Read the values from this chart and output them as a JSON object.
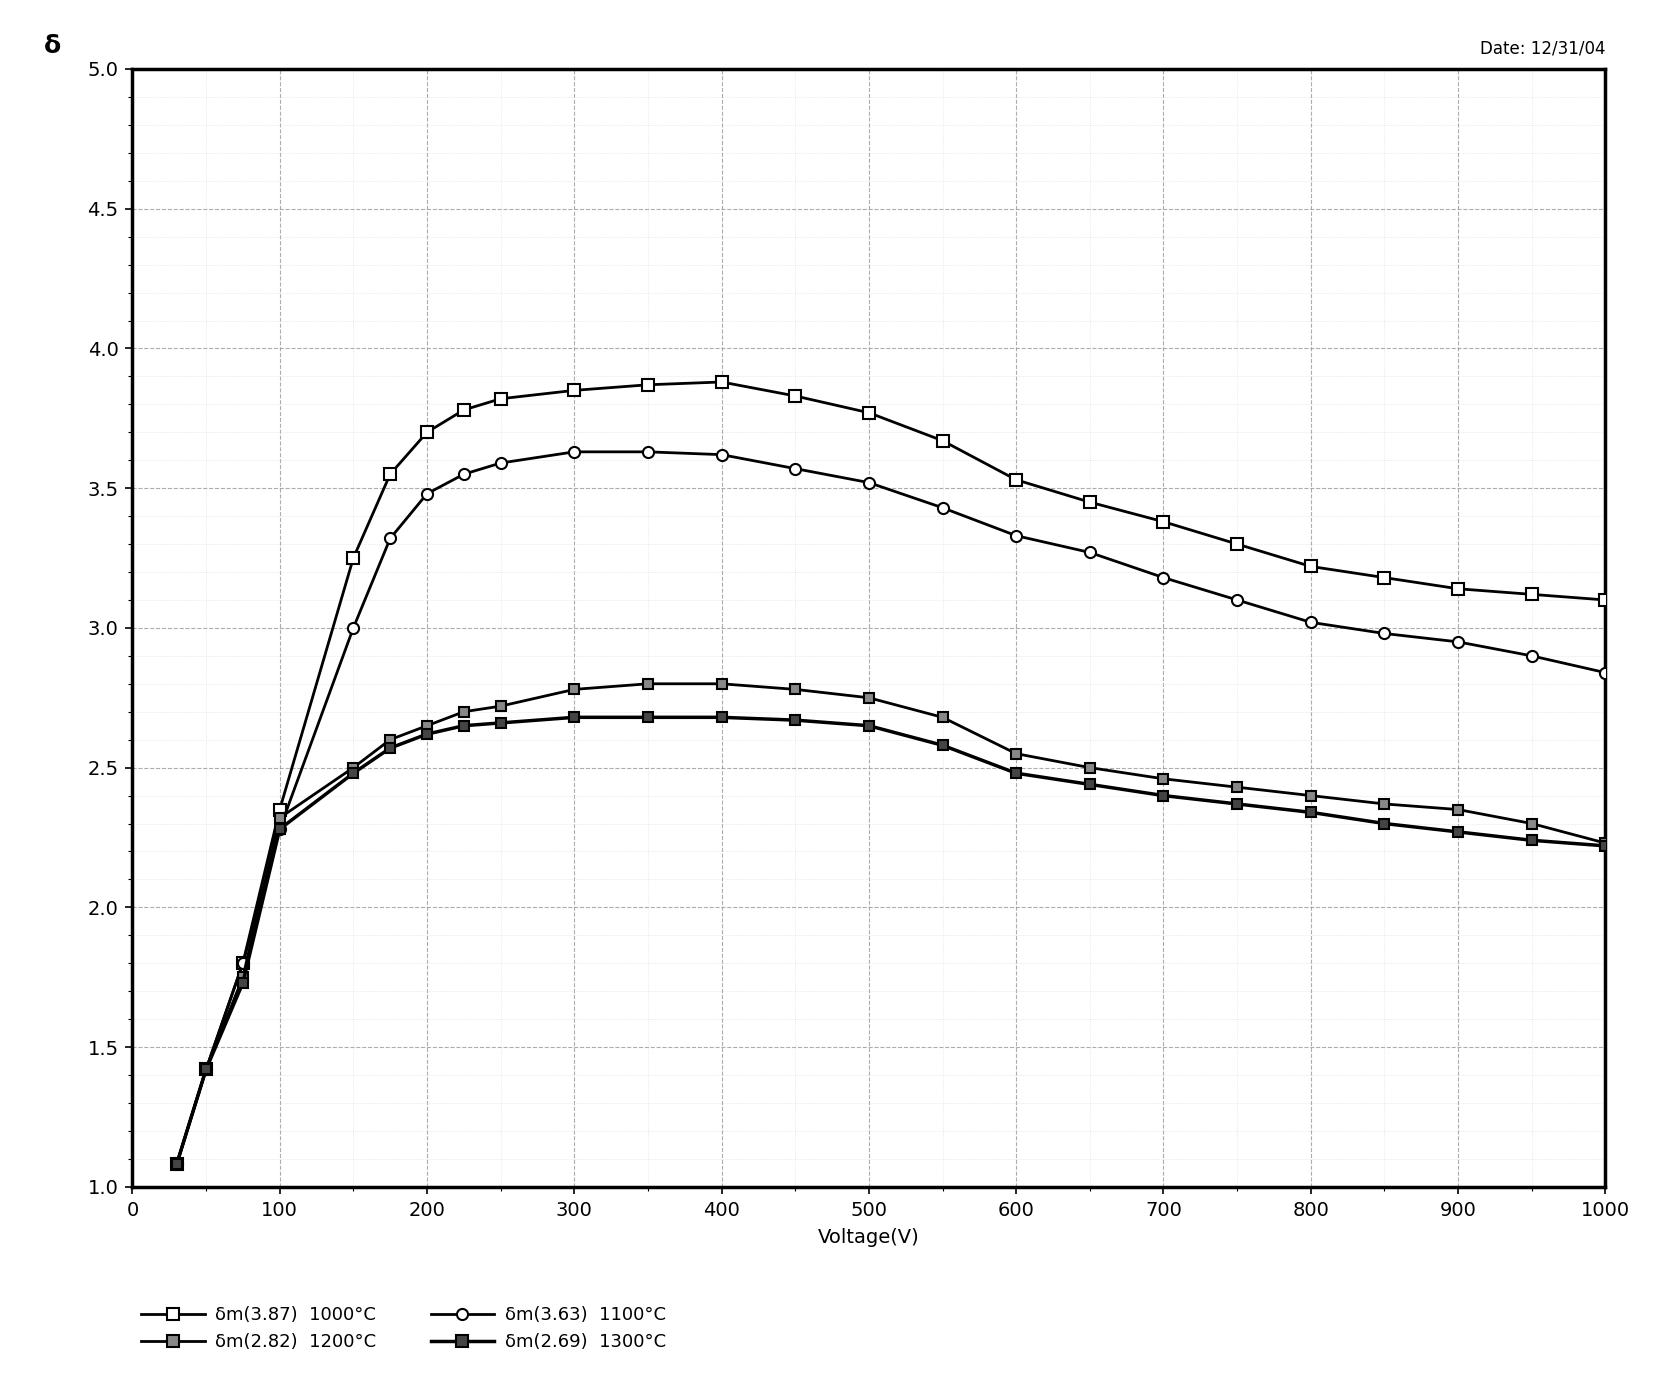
{
  "title_left": "δ",
  "date_label": "Date: 12/31/04",
  "xlabel": "Voltage(V)",
  "xlim": [
    0,
    1000
  ],
  "ylim": [
    1.0,
    5.0
  ],
  "yticks": [
    1.0,
    1.5,
    2.0,
    2.5,
    3.0,
    3.5,
    4.0,
    4.5,
    5.0
  ],
  "xticks": [
    0,
    100,
    200,
    300,
    400,
    500,
    600,
    700,
    800,
    900,
    1000
  ],
  "background_color": "#ffffff",
  "series": [
    {
      "label": "δm(3.87)  1000°C",
      "marker": "s",
      "color": "#000000",
      "linewidth": 2.0,
      "markerfacecolor": "white",
      "markersize": 8,
      "x": [
        30,
        50,
        75,
        100,
        150,
        175,
        200,
        225,
        250,
        300,
        350,
        400,
        450,
        500,
        550,
        600,
        650,
        700,
        750,
        800,
        850,
        900,
        950,
        1000
      ],
      "y": [
        1.08,
        1.42,
        1.8,
        2.35,
        3.25,
        3.55,
        3.7,
        3.78,
        3.82,
        3.85,
        3.87,
        3.88,
        3.83,
        3.77,
        3.67,
        3.53,
        3.45,
        3.38,
        3.3,
        3.22,
        3.18,
        3.14,
        3.12,
        3.1
      ]
    },
    {
      "label": "δm(3.63)  1100°C",
      "marker": "o",
      "color": "#000000",
      "linewidth": 2.0,
      "markerfacecolor": "white",
      "markersize": 8,
      "x": [
        30,
        50,
        75,
        100,
        150,
        175,
        200,
        225,
        250,
        300,
        350,
        400,
        450,
        500,
        550,
        600,
        650,
        700,
        750,
        800,
        850,
        900,
        950,
        1000
      ],
      "y": [
        1.08,
        1.42,
        1.8,
        2.28,
        3.0,
        3.32,
        3.48,
        3.55,
        3.59,
        3.63,
        3.63,
        3.62,
        3.57,
        3.52,
        3.43,
        3.33,
        3.27,
        3.18,
        3.1,
        3.02,
        2.98,
        2.95,
        2.9,
        2.84
      ]
    },
    {
      "label": "δm(2.82)  1200°C",
      "marker": "s",
      "color": "#000000",
      "linewidth": 2.0,
      "markerfacecolor": "#888888",
      "markersize": 7,
      "x": [
        30,
        50,
        75,
        100,
        150,
        175,
        200,
        225,
        250,
        300,
        350,
        400,
        450,
        500,
        550,
        600,
        650,
        700,
        750,
        800,
        850,
        900,
        950,
        1000
      ],
      "y": [
        1.08,
        1.42,
        1.75,
        2.32,
        2.5,
        2.6,
        2.65,
        2.7,
        2.72,
        2.78,
        2.8,
        2.8,
        2.78,
        2.75,
        2.68,
        2.55,
        2.5,
        2.46,
        2.43,
        2.4,
        2.37,
        2.35,
        2.3,
        2.23
      ]
    },
    {
      "label": "δm(2.69)  1300°C",
      "marker": "s",
      "color": "#000000",
      "linewidth": 2.5,
      "markerfacecolor": "#444444",
      "markersize": 7,
      "x": [
        30,
        50,
        75,
        100,
        150,
        175,
        200,
        225,
        250,
        300,
        350,
        400,
        450,
        500,
        550,
        600,
        650,
        700,
        750,
        800,
        850,
        900,
        950,
        1000
      ],
      "y": [
        1.08,
        1.42,
        1.73,
        2.28,
        2.48,
        2.57,
        2.62,
        2.65,
        2.66,
        2.68,
        2.68,
        2.68,
        2.67,
        2.65,
        2.58,
        2.48,
        2.44,
        2.4,
        2.37,
        2.34,
        2.3,
        2.27,
        2.24,
        2.22
      ]
    }
  ]
}
